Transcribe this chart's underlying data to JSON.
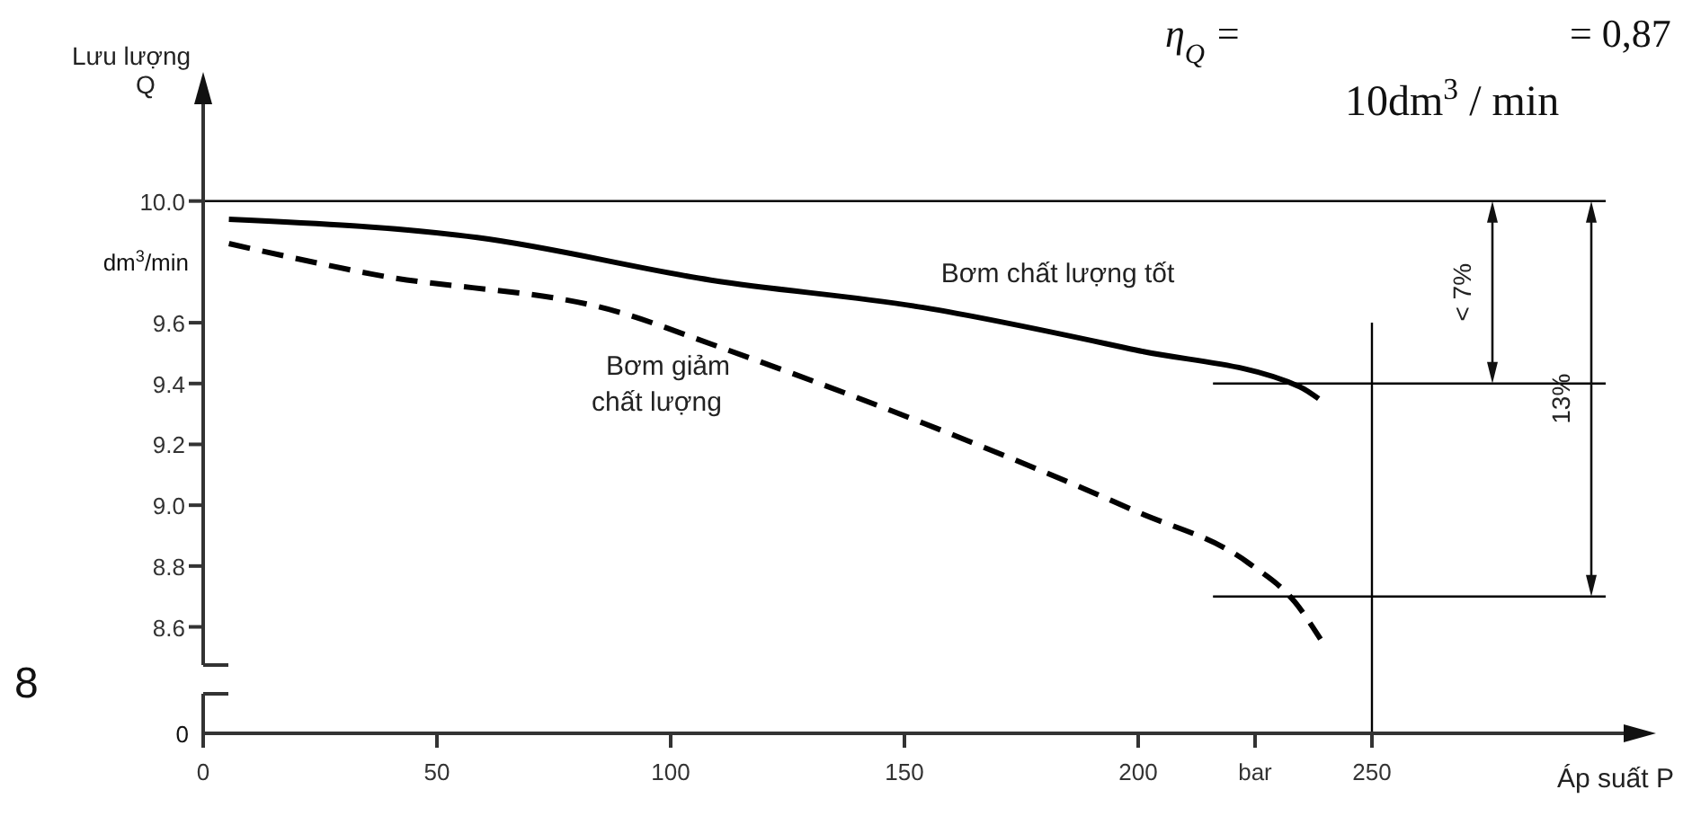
{
  "chart_data": {
    "type": "line",
    "ylabel": "Lưu lượng Q",
    "xlabel": "Áp suất P",
    "xlim": [
      0,
      300
    ],
    "ylim": [
      8.25,
      10.2
    ],
    "marker": "none",
    "grid": false,
    "xticks": [
      0,
      50,
      100,
      150,
      200,
      {
        "value": 225,
        "label": "bar"
      },
      250
    ],
    "yticks": [
      8.6,
      8.8,
      {
        "value": 9,
        "label": "9.0"
      },
      9.2,
      9.4,
      9.6,
      {
        "value": 10,
        "label": "10.0"
      }
    ],
    "series": [
      {
        "name": "Bơm chất lượng tốt",
        "color": "#000000",
        "line_style": "solid",
        "x": [
          5.5,
          58.6,
          108.6,
          154,
          199.5,
          234.5,
          238.6
        ],
        "values": [
          9.94,
          9.88,
          9.74,
          9.65,
          9.51,
          9.39,
          9.35
        ]
      },
      {
        "name": "Bơm giảm chất lượng",
        "color": "#000000",
        "line_style": "dashed",
        "x": [
          5.5,
          36,
          90,
          108.6,
          154,
          199.5,
          223.6,
          233.6,
          239
        ],
        "values": [
          9.86,
          9.76,
          9.63,
          9.53,
          9.27,
          8.98,
          8.81,
          8.68,
          8.56
        ]
      }
    ],
    "ref_lines": [
      {
        "axis": "y",
        "value": 10,
        "color": "#000000"
      },
      {
        "axis": "y",
        "value": 9.4,
        "color": "#000000"
      },
      {
        "axis": "y",
        "value": 8.7,
        "color": "#000000"
      },
      {
        "axis": "x",
        "value": 250,
        "color": "#000000"
      }
    ],
    "annotations": [
      "η$_{Q}$ =",
      "10dm$^{3}$ / min",
      "= 0,87",
      "8",
      "dm$^{3}$/min",
      "0",
      "< 7%",
      "13%"
    ]
  }
}
